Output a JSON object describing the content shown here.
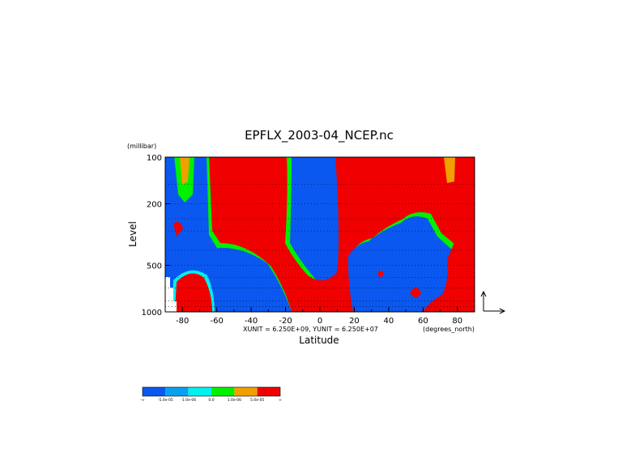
{
  "chart_data": {
    "type": "heatmap",
    "title": "EPFLX_2003-04_NCEP.nc",
    "xlabel": "Latitude",
    "x_units": "(degrees_north)",
    "ylabel": "Level",
    "y_units": "(millibar)",
    "unit_note": "XUNIT = 6.250E+09, YUNIT = 6.250E+07",
    "xlim": [
      -90,
      90
    ],
    "ylim": [
      1000,
      100
    ],
    "y_scale": "log",
    "x_ticks": [
      "-80",
      "-60",
      "-40",
      "-20",
      "0",
      "20",
      "40",
      "60",
      "80"
    ],
    "x_tick_values": [
      -80,
      -60,
      -40,
      -20,
      0,
      20,
      40,
      60,
      80
    ],
    "y_ticks": [
      "100",
      "200",
      "500",
      "1000"
    ],
    "y_tick_values": [
      100,
      200,
      500,
      1000
    ],
    "grid_levels": [
      100,
      150,
      200,
      250,
      300,
      400,
      500,
      600,
      700,
      850,
      925,
      1000
    ],
    "grid": "dotted horizontal lines at pressure levels",
    "colorbar": {
      "colors": [
        "#0a58f0",
        "#0aa0f0",
        "#00f0f0",
        "#00f000",
        "#f0a000",
        "#f00000"
      ],
      "labels": [
        "-∞",
        "-5.0e-05",
        "-1.0e-06",
        "0.0",
        "1.0e-06",
        "5.0e-05",
        "∞"
      ]
    }
  }
}
